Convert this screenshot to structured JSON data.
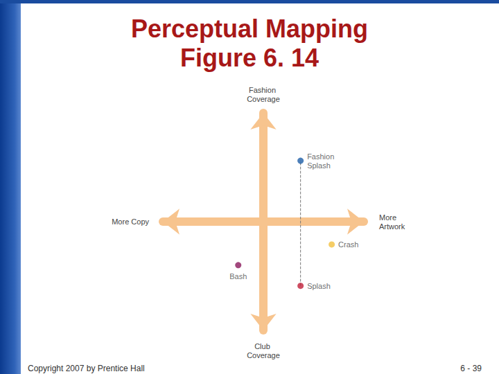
{
  "chart_data": {
    "type": "scatter",
    "title": "Perceptual Mapping",
    "subtitle": "Figure 6. 14",
    "axis_ends": {
      "x": [
        "More Copy",
        "More Artwork"
      ],
      "y": [
        "Club Coverage",
        "Fashion Coverage"
      ]
    },
    "xlim": [
      -10,
      10
    ],
    "ylim": [
      -10,
      10
    ],
    "tick_labels": false,
    "grid": false,
    "points": [
      {
        "name": "Fashion Splash",
        "x": 3.7,
        "y": 5.6,
        "color": "#1f5fa8"
      },
      {
        "name": "Crash",
        "x": 6.8,
        "y": -2.1,
        "color": "#f3c040"
      },
      {
        "name": "Bash",
        "x": -2.5,
        "y": -4.0,
        "color": "#8b1a5c"
      },
      {
        "name": "Splash",
        "x": 3.7,
        "y": -5.9,
        "color": "#c0203a"
      }
    ],
    "movement": {
      "from": "Splash",
      "to": "Fashion Splash",
      "line_style": "dashed"
    },
    "annotations": [
      "Copyright 2007 by Prentice Hall",
      "6 - 39"
    ]
  }
}
